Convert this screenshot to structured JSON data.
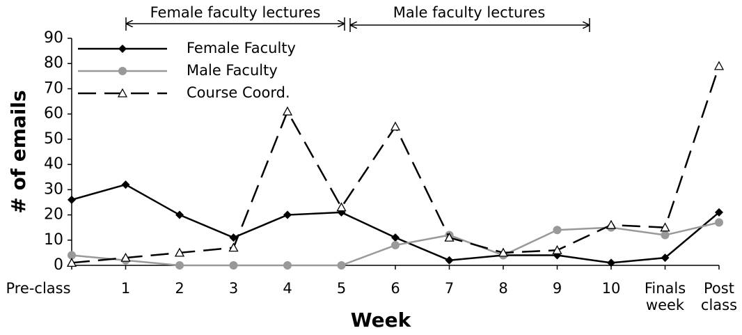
{
  "chart_data": {
    "type": "line",
    "xlabel": "Week",
    "ylabel": "# of emails",
    "annotations": [
      "Female faculty lectures",
      "Male faculty lectures"
    ],
    "categories": [
      "Pre-class",
      "1",
      "2",
      "3",
      "4",
      "5",
      "6",
      "7",
      "8",
      "9",
      "10",
      "Finals week",
      "Post class"
    ],
    "series": [
      {
        "name": "Female Faculty",
        "color": "#000000",
        "marker": "diamond",
        "line_style": "solid",
        "values": [
          26,
          32,
          20,
          11,
          20,
          21,
          11,
          2,
          4,
          4,
          1,
          3,
          21
        ]
      },
      {
        "name": "Male Faculty",
        "color": "#999999",
        "marker": "circle",
        "line_style": "solid",
        "values": [
          4,
          2,
          0,
          0,
          0,
          0,
          8,
          12,
          4,
          14,
          15,
          12,
          17
        ]
      },
      {
        "name": "Course Coord.",
        "color": "#000000",
        "marker": "triangle",
        "line_style": "dashed",
        "values": [
          1,
          3,
          5,
          7,
          61,
          23,
          55,
          11,
          5,
          6,
          16,
          15,
          79
        ]
      }
    ],
    "ylim": [
      0,
      90
    ],
    "yticks": [
      0,
      10,
      20,
      30,
      40,
      50,
      60,
      70,
      80,
      90
    ],
    "grid": false,
    "legend": "upper left"
  }
}
